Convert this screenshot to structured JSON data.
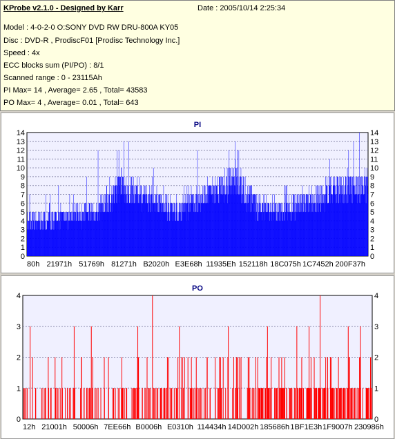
{
  "info": {
    "title": "KProbe v2.1.0 - Designed by Karr",
    "date": "Date : 2005/10/14 2:25:34",
    "model": "Model : 4-0-2-0 O:SONY    DVD RW DRU-800A  KY05",
    "disc": "Disc : DVD-R , ProdiscF01 [Prodisc Technology Inc.]",
    "speed": "Speed : 4x",
    "ecc": "ECC blocks sum (PI/PO) : 8/1",
    "range": "Scanned range : 0 - 23115Ah",
    "pi_summary": "PI Max= 14 , Average= 2.65 , Total= 43583",
    "po_summary": "PO Max= 4 , Average= 0.01 , Total= 643"
  },
  "colors": {
    "pi": "#0000ff",
    "po": "#ff0000",
    "plot_bg": "#f0f0ff",
    "grid": "#8888aa",
    "title": "#000080"
  },
  "chart_data": [
    {
      "type": "bar",
      "title": "PI",
      "ylim": [
        0,
        14
      ],
      "yticks": [
        0,
        1,
        2,
        3,
        4,
        5,
        6,
        7,
        8,
        9,
        10,
        11,
        12,
        13,
        14
      ],
      "xlim": [
        0,
        1442
      ],
      "xtick_labels": [
        "80h",
        "21971h",
        "51769h",
        "81271h",
        "B2020h",
        "E3E68h",
        "11935Eh",
        "152118h",
        "18C075h",
        "1C7452h",
        "200F37h"
      ],
      "grid": true,
      "profile": [
        {
          "x": 0,
          "base": 3.5,
          "var": 2.0
        },
        {
          "x": 144,
          "base": 4.0,
          "var": 2.0
        },
        {
          "x": 288,
          "base": 4.5,
          "var": 2.5
        },
        {
          "x": 400,
          "base": 7.5,
          "var": 3.5
        },
        {
          "x": 520,
          "base": 6.0,
          "var": 3.0
        },
        {
          "x": 640,
          "base": 4.5,
          "var": 2.5
        },
        {
          "x": 760,
          "base": 6.5,
          "var": 3.0
        },
        {
          "x": 880,
          "base": 8.0,
          "var": 3.5
        },
        {
          "x": 960,
          "base": 5.5,
          "var": 3.0
        },
        {
          "x": 1060,
          "base": 4.5,
          "var": 2.5
        },
        {
          "x": 1160,
          "base": 5.5,
          "var": 3.0
        },
        {
          "x": 1300,
          "base": 7.0,
          "var": 3.5
        },
        {
          "x": 1442,
          "base": 7.5,
          "var": 3.5
        }
      ],
      "peaks": [
        {
          "x": 300,
          "y": 12
        },
        {
          "x": 380,
          "y": 12
        },
        {
          "x": 410,
          "y": 13
        },
        {
          "x": 430,
          "y": 13
        },
        {
          "x": 720,
          "y": 12
        },
        {
          "x": 880,
          "y": 13
        },
        {
          "x": 895,
          "y": 12
        },
        {
          "x": 1380,
          "y": 13
        },
        {
          "x": 1405,
          "y": 14
        }
      ]
    },
    {
      "type": "bar",
      "title": "PO",
      "ylim": [
        0,
        4
      ],
      "yticks": [
        0,
        1,
        2,
        3,
        4
      ],
      "xlim": [
        0,
        1428
      ],
      "xtick_labels": [
        "12h",
        "21001h",
        "50006h",
        "7EE66h",
        "B0006h",
        "E0310h",
        "114434h",
        "14D002h",
        "185686h",
        "1BF1E3h",
        "1F9007h",
        "230986h"
      ],
      "grid": true,
      "peaks": [
        {
          "x": 530,
          "y": 4
        },
        {
          "x": 1215,
          "y": 4
        },
        {
          "x": 30,
          "y": 3
        },
        {
          "x": 210,
          "y": 3
        },
        {
          "x": 280,
          "y": 3
        },
        {
          "x": 470,
          "y": 3
        },
        {
          "x": 640,
          "y": 3
        },
        {
          "x": 840,
          "y": 3
        },
        {
          "x": 1000,
          "y": 3
        },
        {
          "x": 1120,
          "y": 3
        },
        {
          "x": 1170,
          "y": 3
        },
        {
          "x": 1330,
          "y": 3
        },
        {
          "x": 1380,
          "y": 3
        }
      ]
    }
  ]
}
